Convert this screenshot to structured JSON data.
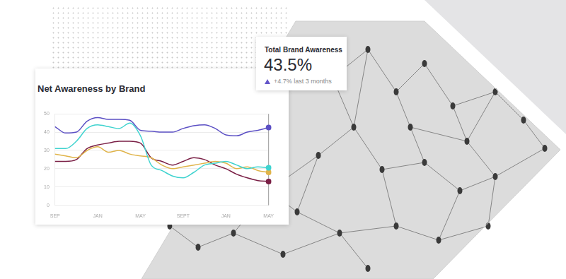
{
  "chart_data": {
    "type": "line",
    "title": "Net Awareness by Brand",
    "categories": [
      "SEP",
      null,
      null,
      null,
      "JAN",
      null,
      null,
      null,
      "MAY",
      null,
      null,
      null,
      "SEPT",
      null,
      null,
      null,
      "JAN",
      null,
      null,
      null,
      "MAY"
    ],
    "series": [
      {
        "color": "#5b4fc4",
        "values": [
          43,
          39.5,
          40,
          46,
          48,
          47,
          47,
          46.5,
          41,
          40.5,
          40,
          40,
          42,
          43.5,
          44,
          42,
          38.5,
          38,
          40,
          41,
          42.5
        ]
      },
      {
        "color": "#3fd3cf",
        "values": [
          31,
          31,
          35,
          42,
          44,
          43,
          42,
          45,
          38,
          22,
          19,
          16,
          15,
          18,
          22,
          23,
          24,
          22,
          20,
          21,
          20.5
        ]
      },
      {
        "color": "#e0b44a",
        "values": [
          28,
          27,
          26,
          30,
          32,
          29,
          30,
          28,
          27,
          26,
          22,
          20,
          21,
          22,
          23,
          24,
          23,
          20,
          21,
          19,
          18
        ]
      },
      {
        "color": "#7a1f45",
        "values": [
          24,
          24,
          25,
          31,
          33,
          34,
          35,
          35,
          34,
          26,
          24,
          22,
          24,
          26,
          25,
          22,
          20,
          17,
          15,
          13.5,
          13
        ]
      }
    ],
    "ylim": [
      0,
      50
    ],
    "yticks": [
      0,
      10,
      20,
      30,
      40,
      50
    ],
    "grid": true
  },
  "kpi": {
    "label": "Total Brand Awareness",
    "value": "43.5%",
    "change": "+4.7% last 3 months"
  }
}
